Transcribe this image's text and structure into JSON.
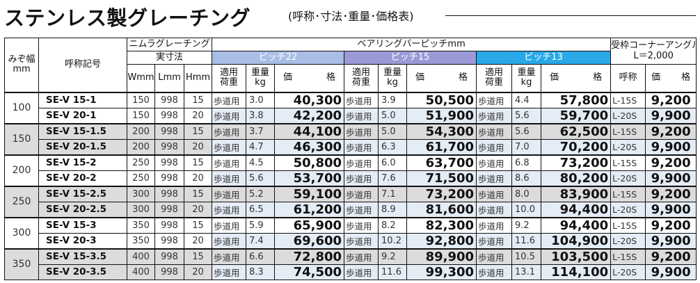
{
  "title": {
    "main": "ステンレス製グレーチング",
    "sub": "(呼称･寸法･重量･価格表)"
  },
  "headers": {
    "width": "みぞ幅",
    "width_unit": "mm",
    "code": "呼称記号",
    "nimura": "ニムラグレーチング",
    "actual_dims": "実寸法",
    "dim_w": "Wmm",
    "dim_l": "Lmm",
    "dim_h": "Hmm",
    "bearing": "ベアリングバーピッチmm",
    "pitch22": "ピッチ22",
    "pitch15": "ピッチ15",
    "pitch13": "ピッチ13",
    "use": "適用荷重",
    "weight": "重量kg",
    "price_a": "価",
    "price_b": "格",
    "corner": "受枠コーナーアングル",
    "corner_len": "L＝2,000",
    "corner_name": "呼称"
  },
  "groups": [
    {
      "width": "100",
      "rows": [
        {
          "code": "SE-V 15-1",
          "w": "150",
          "l": "998",
          "h": "15",
          "p22": {
            "use": "歩道用",
            "kg": "3.0",
            "price": "40,300"
          },
          "p15": {
            "use": "歩道用",
            "kg": "3.9",
            "price": "50,500"
          },
          "p13": {
            "use": "歩道用",
            "kg": "4.4",
            "price": "57,800"
          },
          "corner": {
            "name": "L-15S",
            "price": "9,200"
          }
        },
        {
          "code": "SE-V 20-1",
          "w": "150",
          "l": "998",
          "h": "20",
          "p22": {
            "use": "歩道用",
            "kg": "3.8",
            "price": "42,200"
          },
          "p15": {
            "use": "歩道用",
            "kg": "5.0",
            "price": "51,900"
          },
          "p13": {
            "use": "歩道用",
            "kg": "5.6",
            "price": "59,700"
          },
          "corner": {
            "name": "L-20S",
            "price": "9,900"
          }
        }
      ]
    },
    {
      "width": "150",
      "rows": [
        {
          "code": "SE-V 15-1.5",
          "w": "200",
          "l": "998",
          "h": "15",
          "p22": {
            "use": "歩道用",
            "kg": "3.7",
            "price": "44,100"
          },
          "p15": {
            "use": "歩道用",
            "kg": "5.0",
            "price": "54,300"
          },
          "p13": {
            "use": "歩道用",
            "kg": "5.6",
            "price": "62,500"
          },
          "corner": {
            "name": "L-15S",
            "price": "9,200"
          }
        },
        {
          "code": "SE-V 20-1.5",
          "w": "200",
          "l": "998",
          "h": "20",
          "p22": {
            "use": "歩道用",
            "kg": "4.7",
            "price": "46,300"
          },
          "p15": {
            "use": "歩道用",
            "kg": "6.3",
            "price": "61,700"
          },
          "p13": {
            "use": "歩道用",
            "kg": "7.0",
            "price": "70,200"
          },
          "corner": {
            "name": "L-20S",
            "price": "9,900"
          }
        }
      ]
    },
    {
      "width": "200",
      "rows": [
        {
          "code": "SE-V 15-2",
          "w": "250",
          "l": "998",
          "h": "15",
          "p22": {
            "use": "歩道用",
            "kg": "4.5",
            "price": "50,800"
          },
          "p15": {
            "use": "歩道用",
            "kg": "6.0",
            "price": "63,700"
          },
          "p13": {
            "use": "歩道用",
            "kg": "6.8",
            "price": "73,200"
          },
          "corner": {
            "name": "L-15S",
            "price": "9,200"
          }
        },
        {
          "code": "SE-V 20-2",
          "w": "250",
          "l": "998",
          "h": "20",
          "p22": {
            "use": "歩道用",
            "kg": "5.6",
            "price": "53,700"
          },
          "p15": {
            "use": "歩道用",
            "kg": "7.6",
            "price": "71,500"
          },
          "p13": {
            "use": "歩道用",
            "kg": "8.6",
            "price": "80,200"
          },
          "corner": {
            "name": "L-20S",
            "price": "9,900"
          }
        }
      ]
    },
    {
      "width": "250",
      "rows": [
        {
          "code": "SE-V 15-2.5",
          "w": "300",
          "l": "998",
          "h": "15",
          "p22": {
            "use": "歩道用",
            "kg": "5.2",
            "price": "59,100"
          },
          "p15": {
            "use": "歩道用",
            "kg": "7.1",
            "price": "73,200"
          },
          "p13": {
            "use": "歩道用",
            "kg": "8.0",
            "price": "83,900"
          },
          "corner": {
            "name": "L-15S",
            "price": "9,200"
          }
        },
        {
          "code": "SE-V 20-2.5",
          "w": "300",
          "l": "998",
          "h": "20",
          "p22": {
            "use": "歩道用",
            "kg": "6.5",
            "price": "61,200"
          },
          "p15": {
            "use": "歩道用",
            "kg": "8.9",
            "price": "81,600"
          },
          "p13": {
            "use": "歩道用",
            "kg": "10.0",
            "price": "94,400"
          },
          "corner": {
            "name": "L-20S",
            "price": "9,900"
          }
        }
      ]
    },
    {
      "width": "300",
      "rows": [
        {
          "code": "SE-V 15-3",
          "w": "350",
          "l": "998",
          "h": "15",
          "p22": {
            "use": "歩道用",
            "kg": "5.9",
            "price": "65,900"
          },
          "p15": {
            "use": "歩道用",
            "kg": "8.2",
            "price": "82,300"
          },
          "p13": {
            "use": "歩道用",
            "kg": "9.2",
            "price": "94,400"
          },
          "corner": {
            "name": "L-15S",
            "price": "9,200"
          }
        },
        {
          "code": "SE-V 20-3",
          "w": "350",
          "l": "998",
          "h": "20",
          "p22": {
            "use": "歩道用",
            "kg": "7.4",
            "price": "69,600"
          },
          "p15": {
            "use": "歩道用",
            "kg": "10.2",
            "price": "92,800"
          },
          "p13": {
            "use": "歩道用",
            "kg": "11.6",
            "price": "104,900"
          },
          "corner": {
            "name": "L-20S",
            "price": "9,900"
          }
        }
      ]
    },
    {
      "width": "350",
      "rows": [
        {
          "code": "SE-V 15-3.5",
          "w": "400",
          "l": "998",
          "h": "15",
          "p22": {
            "use": "歩道用",
            "kg": "6.6",
            "price": "72,800"
          },
          "p15": {
            "use": "歩道用",
            "kg": "9.2",
            "price": "89,900"
          },
          "p13": {
            "use": "歩道用",
            "kg": "10.5",
            "price": "103,500"
          },
          "corner": {
            "name": "L-15S",
            "price": "9,200"
          }
        },
        {
          "code": "SE-V 20-3.5",
          "w": "400",
          "l": "998",
          "h": "20",
          "p22": {
            "use": "歩道用",
            "kg": "8.3",
            "price": "74,500"
          },
          "p15": {
            "use": "歩道用",
            "kg": "11.6",
            "price": "99,300"
          },
          "p13": {
            "use": "歩道用",
            "kg": "13.1",
            "price": "114,100"
          },
          "corner": {
            "name": "L-20S",
            "price": "9,900"
          }
        }
      ]
    }
  ]
}
